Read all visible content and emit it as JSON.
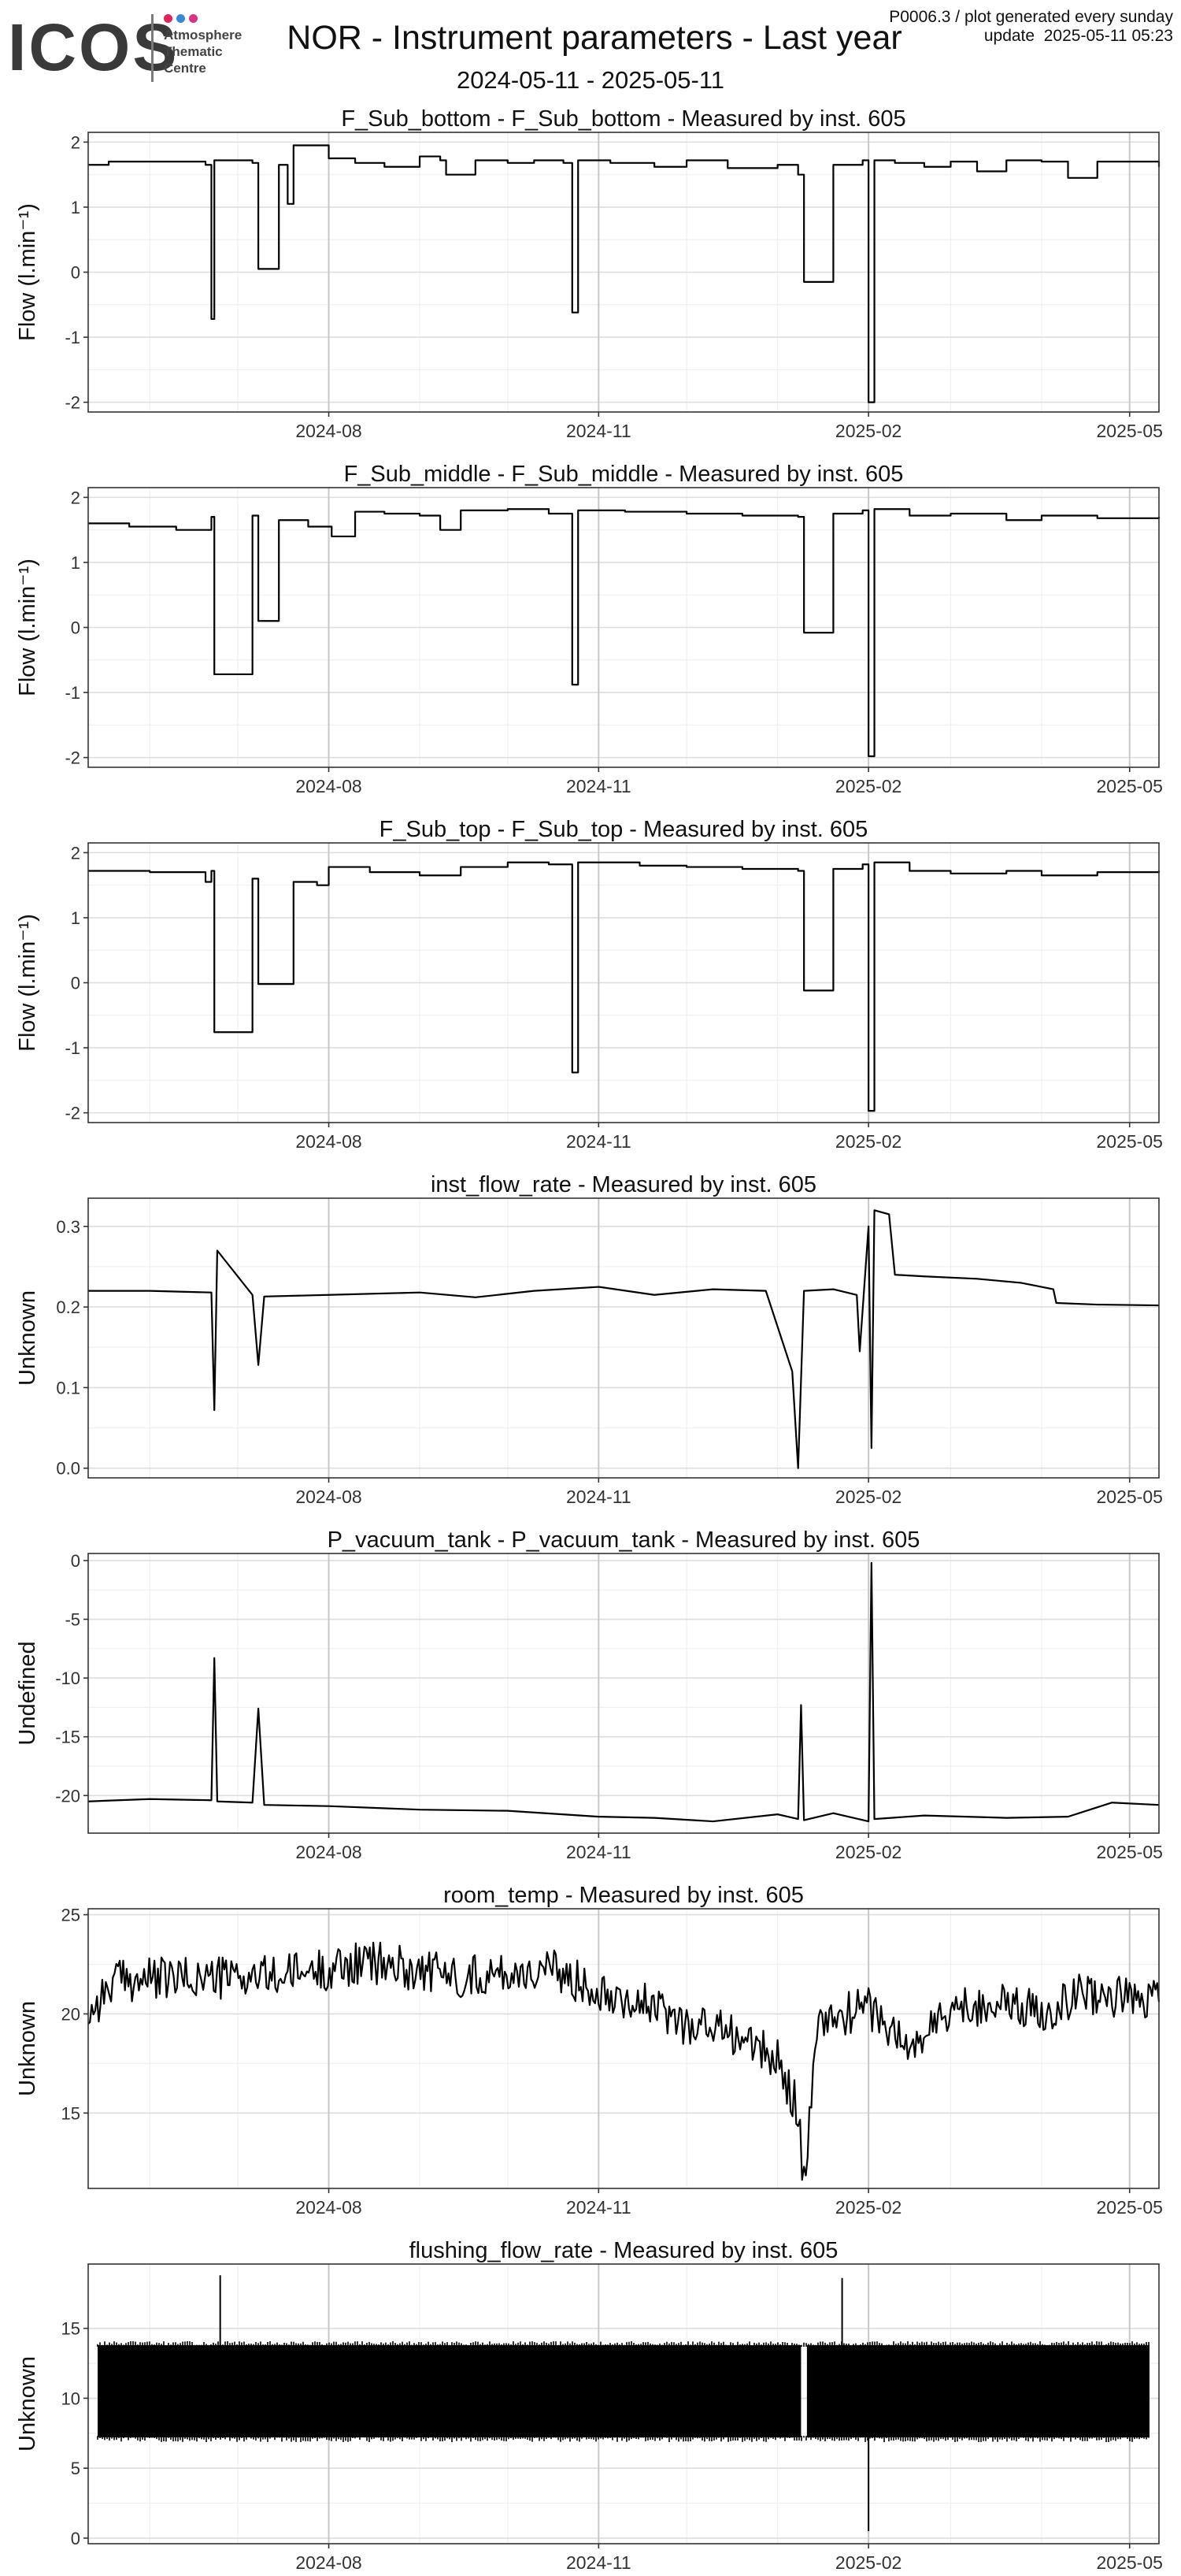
{
  "header": {
    "logo_text": "ICOS",
    "logo_subtitle": "Atmosphere\nThematic\nCentre",
    "logo_colors": [
      "#e0245e",
      "#3b86d6",
      "#d63384"
    ],
    "title": "NOR - Instrument parameters - Last year",
    "product_info": "P0006.3 / plot generated every sunday",
    "update_info": "update  2025-05-11 05:23",
    "date_range": "2024-05-11 - 2025-05-11"
  },
  "chart_data": [
    {
      "type": "line",
      "title": "F_Sub_bottom - F_Sub_bottom - Measured by inst. 605",
      "xlabel": "",
      "ylabel": "Flow (l.min⁻¹)",
      "ylim": [
        -2.15,
        2.15
      ],
      "yticks": [
        -2,
        -1,
        0,
        1,
        2
      ],
      "yticklabels": [
        "-2",
        "-1",
        "0",
        "1",
        "2"
      ],
      "xlim": [
        "2024-05-11",
        "2025-05-11"
      ],
      "xticks": [
        "2024-08-01",
        "2024-11-01",
        "2025-02-01",
        "2025-05-01"
      ],
      "xticklabels": [
        "2024-08",
        "2024-11",
        "2025-02",
        "2025-05"
      ],
      "grid": true,
      "style": "step",
      "series": [
        {
          "x": [
            "2024-05-11",
            "2024-05-18",
            "2024-06-01",
            "2024-06-20",
            "2024-06-22",
            "2024-06-23",
            "2024-07-06",
            "2024-07-08",
            "2024-07-15",
            "2024-07-18",
            "2024-07-20",
            "2024-08-01",
            "2024-08-10",
            "2024-08-20",
            "2024-09-01",
            "2024-09-08",
            "2024-09-10",
            "2024-09-20",
            "2024-10-01",
            "2024-10-10",
            "2024-10-20",
            "2024-10-23",
            "2024-10-25",
            "2024-11-05",
            "2024-11-20",
            "2024-12-01",
            "2024-12-15",
            "2025-01-01",
            "2025-01-08",
            "2025-01-10",
            "2025-01-20",
            "2025-01-30",
            "2025-02-01",
            "2025-02-03",
            "2025-02-10",
            "2025-02-20",
            "2025-03-01",
            "2025-03-10",
            "2025-03-20",
            "2025-04-01",
            "2025-04-10",
            "2025-04-20",
            "2025-05-11"
          ],
          "y": [
            1.65,
            1.7,
            1.7,
            1.65,
            -0.72,
            1.72,
            1.68,
            0.05,
            1.65,
            1.05,
            1.95,
            1.75,
            1.68,
            1.62,
            1.78,
            1.72,
            1.5,
            1.72,
            1.68,
            1.72,
            1.68,
            -0.62,
            1.72,
            1.68,
            1.62,
            1.72,
            1.6,
            1.65,
            1.5,
            -0.15,
            1.65,
            1.72,
            -2.0,
            1.72,
            1.68,
            1.62,
            1.7,
            1.55,
            1.72,
            1.7,
            1.45,
            1.7,
            1.62
          ]
        }
      ]
    },
    {
      "type": "line",
      "title": "F_Sub_middle - F_Sub_middle - Measured by inst. 605",
      "xlabel": "",
      "ylabel": "Flow (l.min⁻¹)",
      "ylim": [
        -2.15,
        2.15
      ],
      "yticks": [
        -2,
        -1,
        0,
        1,
        2
      ],
      "yticklabels": [
        "-2",
        "-1",
        "0",
        "1",
        "2"
      ],
      "xlim": [
        "2024-05-11",
        "2025-05-11"
      ],
      "xticks": [
        "2024-08-01",
        "2024-11-01",
        "2025-02-01",
        "2025-05-01"
      ],
      "xticklabels": [
        "2024-08",
        "2024-11",
        "2025-02",
        "2025-05"
      ],
      "grid": true,
      "style": "step",
      "series": [
        {
          "x": [
            "2024-05-11",
            "2024-05-25",
            "2024-06-10",
            "2024-06-22",
            "2024-06-23",
            "2024-07-06",
            "2024-07-08",
            "2024-07-15",
            "2024-07-25",
            "2024-08-02",
            "2024-08-10",
            "2024-08-20",
            "2024-09-01",
            "2024-09-08",
            "2024-09-15",
            "2024-10-01",
            "2024-10-15",
            "2024-10-23",
            "2024-10-25",
            "2024-11-10",
            "2024-12-01",
            "2024-12-20",
            "2025-01-08",
            "2025-01-10",
            "2025-01-20",
            "2025-01-30",
            "2025-02-01",
            "2025-02-03",
            "2025-02-15",
            "2025-03-01",
            "2025-03-20",
            "2025-04-01",
            "2025-04-20",
            "2025-05-11"
          ],
          "y": [
            1.6,
            1.55,
            1.5,
            1.7,
            -0.72,
            1.72,
            0.1,
            1.65,
            1.55,
            1.4,
            1.78,
            1.75,
            1.72,
            1.5,
            1.8,
            1.82,
            1.75,
            -0.88,
            1.8,
            1.78,
            1.75,
            1.72,
            1.7,
            -0.08,
            1.75,
            1.8,
            -1.98,
            1.82,
            1.72,
            1.75,
            1.65,
            1.72,
            1.68,
            1.7
          ]
        }
      ]
    },
    {
      "type": "line",
      "title": "F_Sub_top - F_Sub_top - Measured by inst. 605",
      "xlabel": "",
      "ylabel": "Flow (l.min⁻¹)",
      "ylim": [
        -2.15,
        2.15
      ],
      "yticks": [
        -2,
        -1,
        0,
        1,
        2
      ],
      "yticklabels": [
        "-2",
        "-1",
        "0",
        "1",
        "2"
      ],
      "xlim": [
        "2024-05-11",
        "2025-05-11"
      ],
      "xticks": [
        "2024-08-01",
        "2024-11-01",
        "2025-02-01",
        "2025-05-01"
      ],
      "xticklabels": [
        "2024-08",
        "2024-11",
        "2025-02",
        "2025-05"
      ],
      "grid": true,
      "style": "step",
      "series": [
        {
          "x": [
            "2024-05-11",
            "2024-06-01",
            "2024-06-20",
            "2024-06-22",
            "2024-06-23",
            "2024-07-06",
            "2024-07-08",
            "2024-07-20",
            "2024-07-28",
            "2024-08-01",
            "2024-08-15",
            "2024-09-01",
            "2024-09-15",
            "2024-10-01",
            "2024-10-15",
            "2024-10-23",
            "2024-10-25",
            "2024-11-15",
            "2024-12-01",
            "2024-12-20",
            "2025-01-08",
            "2025-01-10",
            "2025-01-20",
            "2025-01-30",
            "2025-02-01",
            "2025-02-03",
            "2025-02-15",
            "2025-03-01",
            "2025-03-20",
            "2025-04-01",
            "2025-04-20",
            "2025-05-11"
          ],
          "y": [
            1.72,
            1.7,
            1.55,
            1.72,
            -0.76,
            1.6,
            -0.02,
            1.55,
            1.5,
            1.78,
            1.7,
            1.65,
            1.78,
            1.85,
            1.82,
            -1.38,
            1.85,
            1.8,
            1.78,
            1.75,
            1.72,
            -0.12,
            1.75,
            1.82,
            -1.97,
            1.85,
            1.72,
            1.68,
            1.72,
            1.65,
            1.7,
            1.72
          ]
        }
      ]
    },
    {
      "type": "line",
      "title": "inst_flow_rate - Measured by inst. 605",
      "xlabel": "",
      "ylabel": "Unknown",
      "ylim": [
        -0.012,
        0.335
      ],
      "yticks": [
        0.0,
        0.1,
        0.2,
        0.3
      ],
      "yticklabels": [
        "0.0",
        "0.1",
        "0.2",
        "0.3"
      ],
      "xlim": [
        "2024-05-11",
        "2025-05-11"
      ],
      "xticks": [
        "2024-08-01",
        "2024-11-01",
        "2025-02-01",
        "2025-05-01"
      ],
      "xticklabels": [
        "2024-08",
        "2024-11",
        "2025-02",
        "2025-05"
      ],
      "grid": true,
      "style": "line",
      "series": [
        {
          "x": [
            "2024-05-11",
            "2024-06-01",
            "2024-06-22",
            "2024-06-23",
            "2024-06-24",
            "2024-07-06",
            "2024-07-08",
            "2024-07-10",
            "2024-08-01",
            "2024-09-01",
            "2024-09-20",
            "2024-10-10",
            "2024-11-01",
            "2024-11-20",
            "2024-12-10",
            "2024-12-28",
            "2025-01-06",
            "2025-01-08",
            "2025-01-10",
            "2025-01-20",
            "2025-01-28",
            "2025-01-29",
            "2025-02-01",
            "2025-02-02",
            "2025-02-03",
            "2025-02-08",
            "2025-02-10",
            "2025-02-20",
            "2025-03-10",
            "2025-03-25",
            "2025-04-05",
            "2025-04-06",
            "2025-04-20",
            "2025-05-11"
          ],
          "y": [
            0.22,
            0.22,
            0.218,
            0.072,
            0.27,
            0.215,
            0.128,
            0.213,
            0.215,
            0.218,
            0.212,
            0.22,
            0.225,
            0.215,
            0.222,
            0.22,
            0.12,
            0.0,
            0.22,
            0.222,
            0.215,
            0.145,
            0.3,
            0.025,
            0.32,
            0.315,
            0.24,
            0.238,
            0.235,
            0.23,
            0.222,
            0.205,
            0.203,
            0.202
          ]
        }
      ]
    },
    {
      "type": "line",
      "title": "P_vacuum_tank - P_vacuum_tank - Measured by inst. 605",
      "xlabel": "",
      "ylabel": "Undefined",
      "ylim": [
        -23.2,
        0.6
      ],
      "yticks": [
        -20,
        -15,
        -10,
        -5,
        0
      ],
      "yticklabels": [
        "-20",
        "-15",
        "-10",
        "-5",
        "0"
      ],
      "xlim": [
        "2024-05-11",
        "2025-05-11"
      ],
      "xticks": [
        "2024-08-01",
        "2024-11-01",
        "2025-02-01",
        "2025-05-01"
      ],
      "xticklabels": [
        "2024-08",
        "2024-11",
        "2025-02",
        "2025-05"
      ],
      "grid": true,
      "style": "line",
      "series": [
        {
          "x": [
            "2024-05-11",
            "2024-06-01",
            "2024-06-22",
            "2024-06-23",
            "2024-06-24",
            "2024-07-06",
            "2024-07-08",
            "2024-07-10",
            "2024-08-01",
            "2024-09-01",
            "2024-10-01",
            "2024-11-01",
            "2024-11-20",
            "2024-12-10",
            "2025-01-01",
            "2025-01-08",
            "2025-01-09",
            "2025-01-10",
            "2025-01-20",
            "2025-02-01",
            "2025-02-02",
            "2025-02-03",
            "2025-02-20",
            "2025-03-20",
            "2025-04-10",
            "2025-04-25",
            "2025-05-11"
          ],
          "y": [
            -20.5,
            -20.3,
            -20.4,
            -8.3,
            -20.5,
            -20.6,
            -12.6,
            -20.8,
            -20.9,
            -21.2,
            -21.3,
            -21.8,
            -21.9,
            -22.2,
            -21.6,
            -22.0,
            -12.3,
            -22.1,
            -21.5,
            -22.2,
            -0.2,
            -22.0,
            -21.7,
            -21.9,
            -21.8,
            -20.6,
            -20.8
          ]
        }
      ]
    },
    {
      "type": "line",
      "title": "room_temp - Measured by inst. 605",
      "xlabel": "",
      "ylabel": "Unknown",
      "ylim": [
        11.2,
        25.3
      ],
      "yticks": [
        15,
        20,
        25
      ],
      "yticklabels": [
        "15",
        "20",
        "25"
      ],
      "xlim": [
        "2024-05-11",
        "2025-05-11"
      ],
      "xticks": [
        "2024-08-01",
        "2024-11-01",
        "2025-02-01",
        "2025-05-01"
      ],
      "xticklabels": [
        "2024-08",
        "2024-11",
        "2025-02",
        "2025-05"
      ],
      "grid": true,
      "style": "noisy",
      "noise": 1.1,
      "series": [
        {
          "x": [
            "2024-05-11",
            "2024-05-20",
            "2024-06-15",
            "2024-07-15",
            "2024-08-15",
            "2024-09-15",
            "2024-10-15",
            "2024-11-01",
            "2024-11-15",
            "2024-12-01",
            "2024-12-15",
            "2025-01-01",
            "2025-01-08",
            "2025-01-10",
            "2025-01-15",
            "2025-02-01",
            "2025-02-15",
            "2025-03-01",
            "2025-03-15",
            "2025-04-01",
            "2025-04-15",
            "2025-05-11"
          ],
          "y": [
            20.0,
            21.7,
            21.8,
            21.9,
            22.6,
            21.9,
            22.2,
            21.3,
            20.6,
            19.5,
            19.2,
            17.6,
            15.3,
            11.4,
            19.5,
            20.4,
            18.2,
            20.2,
            20.6,
            20.1,
            21.1,
            20.6
          ]
        }
      ]
    },
    {
      "type": "area",
      "title": "flushing_flow_rate - Measured by inst. 605",
      "xlabel": "",
      "ylabel": "Unknown",
      "ylim": [
        -0.4,
        19.6
      ],
      "yticks": [
        0,
        5,
        10,
        15
      ],
      "yticklabels": [
        "0",
        "5",
        "10",
        "15"
      ],
      "xlim": [
        "2024-05-11",
        "2025-05-11"
      ],
      "xticks": [
        "2024-08-01",
        "2024-11-01",
        "2025-02-01",
        "2025-05-01"
      ],
      "xticklabels": [
        "2024-08",
        "2024-11",
        "2025-02",
        "2025-05"
      ],
      "grid": true,
      "style": "band",
      "band": {
        "upper": 13.8,
        "lower": 7.2,
        "gap": [
          "2025-01-09",
          "2025-01-11"
        ]
      },
      "spikes": [
        {
          "x": "2024-06-25",
          "y": 18.8
        },
        {
          "x": "2025-01-23",
          "y": 18.6
        },
        {
          "x": "2025-02-01",
          "y": 0.5
        }
      ]
    }
  ]
}
